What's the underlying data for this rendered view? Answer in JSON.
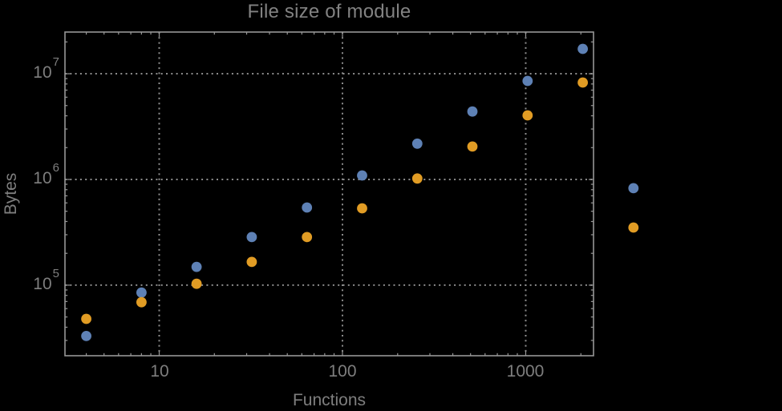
{
  "title": "File size of module",
  "colors": {
    "background": "#000000",
    "frame": "#979797",
    "grid": "#8d8d8d",
    "text": "#7e7e7e",
    "series_blue": "#5e81b5",
    "series_orange": "#e19c24"
  },
  "chart_data": {
    "type": "scatter",
    "title": "File size of module",
    "xlabel": "Functions",
    "ylabel": "Bytes",
    "x_scale": "log",
    "y_scale": "log",
    "grid": true,
    "legend": "none",
    "xlim": [
      3.06,
      2344
    ],
    "ylim": [
      21500,
      24800000
    ],
    "x_ticks": [
      {
        "value": 10,
        "label": "10"
      },
      {
        "value": 100,
        "label": "100"
      },
      {
        "value": 1000,
        "label": "1000"
      }
    ],
    "y_ticks": [
      {
        "value": 100000,
        "mantissa": "10",
        "exponent": "5"
      },
      {
        "value": 1000000,
        "mantissa": "10",
        "exponent": "6"
      },
      {
        "value": 10000000,
        "mantissa": "10",
        "exponent": "7"
      }
    ],
    "x": [
      4,
      8,
      16,
      32,
      64,
      128,
      256,
      512,
      1024,
      2048,
      3870
    ],
    "series": [
      {
        "name": "series-blue",
        "color": "#5e81b5",
        "values": [
          33000,
          85000,
          149000,
          285000,
          543000,
          1090000,
          2180000,
          4390000,
          8550000,
          17200000,
          826000
        ]
      },
      {
        "name": "series-orange",
        "color": "#e19c24",
        "values": [
          48000,
          69000,
          103000,
          166000,
          285000,
          533000,
          1020000,
          2050000,
          4040000,
          8260000,
          351000
        ]
      }
    ]
  }
}
